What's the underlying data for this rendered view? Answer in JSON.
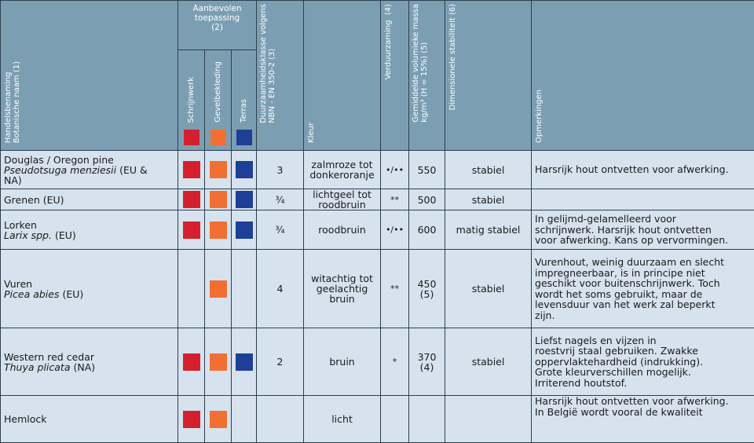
{
  "header": {
    "name": "Handelsbenaming\nBotanische naam (1)",
    "application_group": "Aanbevolen\ntoepassing\n(2)",
    "application_sub": [
      "Schrijnwerk",
      "Gevelbekleding",
      "Terras"
    ],
    "durability": "Duurzaamheidsklasse volgens\nNBN - EN 350-2 (3)",
    "color": "Kleur",
    "treatment": "Verduurzaming  (4)",
    "density": "Gemiddelde volumieke massa\nkg/m³ (H = 15%) (5)",
    "stability": "Dimensionele stabiliteit (6)",
    "remarks": "Opmerkingen"
  },
  "swatch_colors": {
    "schrijnwerk": "#d4202e",
    "gevelbekleding": "#f26f33",
    "terras": "#1e3f95"
  },
  "rows": [
    {
      "name": "Douglas / Oregon pine",
      "latin": "Pseudotsuga menziesii",
      "origin": " (EU &\nNA)",
      "schrijnwerk": true,
      "gevelbekleding": true,
      "terras": true,
      "durability": "3",
      "color": "zalmroze tot\ndonkeroranje",
      "treatment": "•/••",
      "density": "550",
      "stability": "stabiel",
      "remarks": "Harsrijk hout ontvetten voor afwerking."
    },
    {
      "name": "Grenen (EU)",
      "latin": "",
      "origin": "",
      "schrijnwerk": true,
      "gevelbekleding": true,
      "terras": true,
      "durability": "¾",
      "color": "lichtgeel tot\nroodbruin",
      "treatment": "**",
      "density": "500",
      "stability": "stabiel",
      "remarks": ""
    },
    {
      "name": "Lorken",
      "latin": "Larix spp.",
      "origin": " (EU)",
      "schrijnwerk": true,
      "gevelbekleding": true,
      "terras": true,
      "durability": "¾",
      "color": "roodbruin",
      "treatment": "•/••",
      "density": "600",
      "stability": "matig stabiel",
      "remarks": "In gelijmd-gelamelleerd voor\nschrijnwerk. Harsrijk hout ontvetten\nvoor afwerking. Kans op vervormingen."
    },
    {
      "name": "Vuren",
      "latin": "Picea abies",
      "origin": " (EU)",
      "schrijnwerk": false,
      "gevelbekleding": true,
      "terras": false,
      "durability": "4",
      "color": "witachtig tot\ngeelachtig\nbruin",
      "treatment": "**",
      "density": "450\n(5)",
      "stability": "stabiel",
      "remarks": "Vurenhout, weinig duurzaam en slecht\nimpregneerbaar, is in principe niet\ngeschikt voor buitenschrijnwerk. Toch\nwordt het soms gebruikt, maar de\nlevensduur van het werk zal beperkt\nzijn."
    },
    {
      "name": "Western red cedar",
      "latin": "Thuya plicata",
      "origin": " (NA)",
      "schrijnwerk": true,
      "gevelbekleding": true,
      "terras": true,
      "durability": "2",
      "color": "bruin",
      "treatment": "*",
      "density": "370\n(4)",
      "stability": "stabiel",
      "remarks": "Liefst nagels en vijzen in\nroestvrij staal gebruiken. Zwakke\noppervlaktehardheid (indrukking).\nGrote kleurverschillen mogelijk.\nIrriterend houtstof."
    },
    {
      "name": "Hemlock",
      "latin": "",
      "origin": "",
      "schrijnwerk": true,
      "gevelbekleding": true,
      "terras": false,
      "durability": "",
      "color": "licht",
      "treatment": "",
      "density": "",
      "stability": "",
      "remarks": "Harsrijk hout ontvetten voor afwerking.\nIn België wordt vooral de kwaliteit"
    }
  ]
}
